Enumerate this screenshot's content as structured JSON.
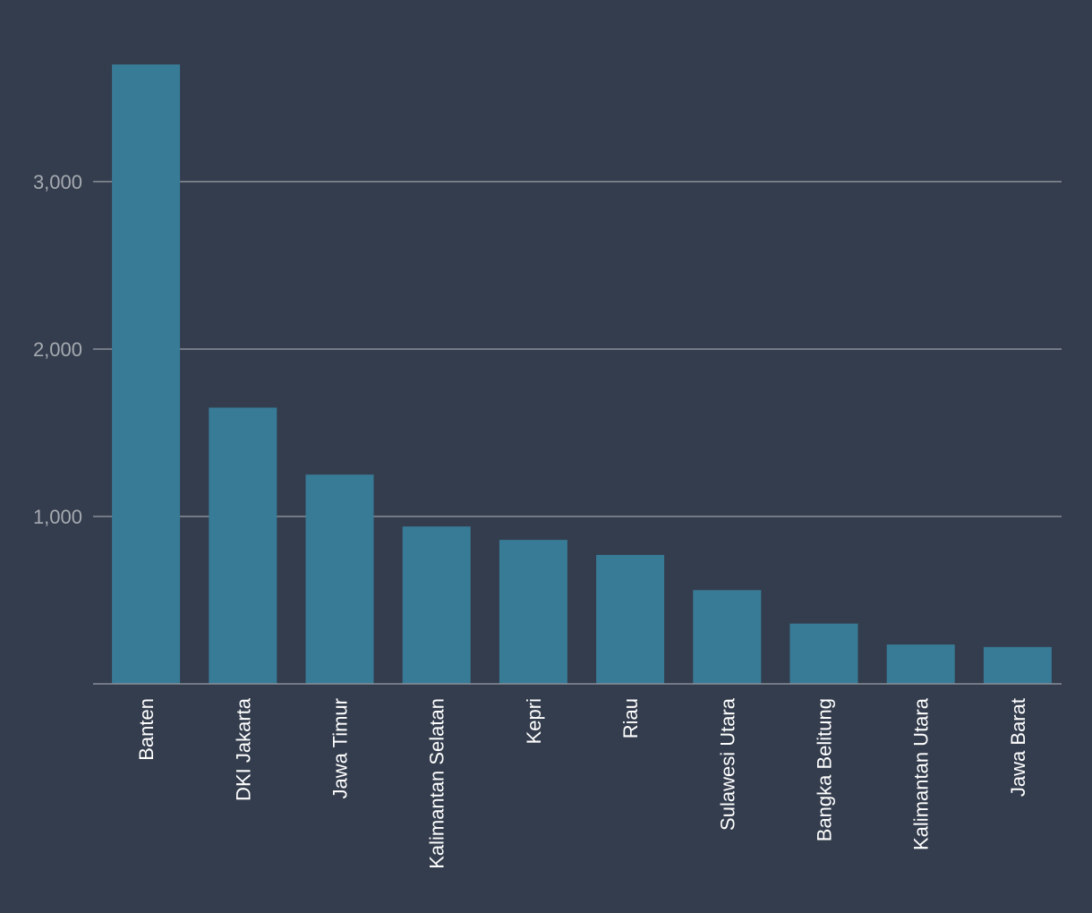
{
  "chart_data": {
    "type": "bar",
    "title": "",
    "xlabel": "",
    "ylabel": "",
    "categories": [
      "Banten",
      "DKI Jakarta",
      "Jawa Timur",
      "Kalimantan Selatan",
      "Kepri",
      "Riau",
      "Sulawesi Utara",
      "Bangka Belitung",
      "Kalimantan Utara",
      "Jawa Barat"
    ],
    "values": [
      3700,
      1650,
      1250,
      940,
      860,
      770,
      560,
      360,
      235,
      220
    ],
    "ylim": [
      0,
      3700
    ],
    "yticks": [
      1000,
      2000,
      3000
    ],
    "ytick_labels": [
      "1,000",
      "2,000",
      "3,000"
    ],
    "grid": true,
    "legend": "none"
  },
  "colors": {
    "background": "#343d4d",
    "bar": "#387b97",
    "grid": "#8a8f98",
    "tick_text": "#a6aab1",
    "category_text": "#ffffff"
  }
}
